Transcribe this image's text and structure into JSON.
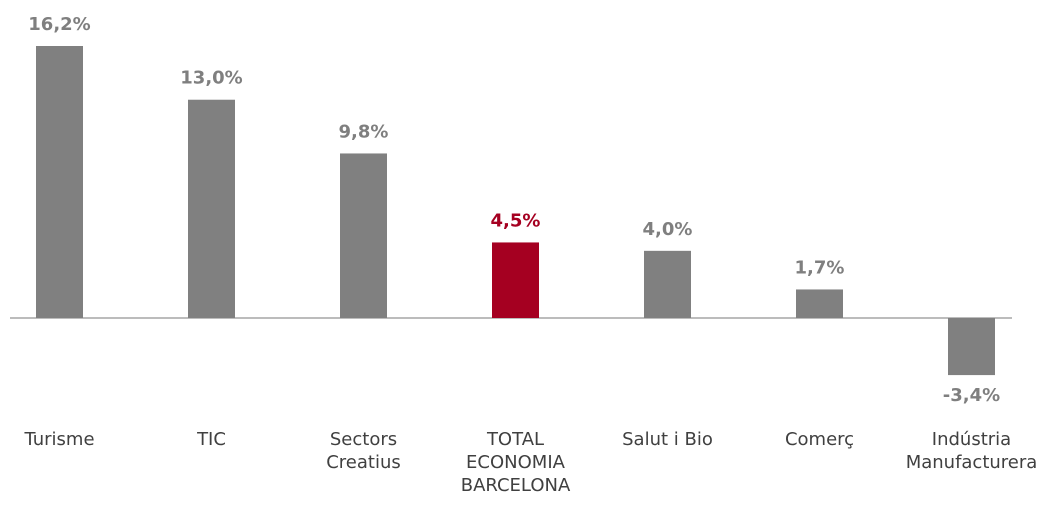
{
  "chart_data": {
    "type": "bar",
    "categories": [
      "Turisme",
      "TIC",
      "Sectors\nCreatius",
      "TOTAL\nECONOMIA\nBARCELONA",
      "Salut i Bio",
      "Comerç",
      "Indústria\nManufacturera"
    ],
    "values": [
      16.2,
      13.0,
      9.8,
      4.5,
      4.0,
      1.7,
      -3.4
    ],
    "value_labels": [
      "16,2%",
      "13,0%",
      "9,8%",
      "4,5%",
      "4,0%",
      "1,7%",
      "-3,4%"
    ],
    "colors": [
      "#808080",
      "#808080",
      "#808080",
      "#a50021",
      "#808080",
      "#808080",
      "#808080"
    ]
  }
}
